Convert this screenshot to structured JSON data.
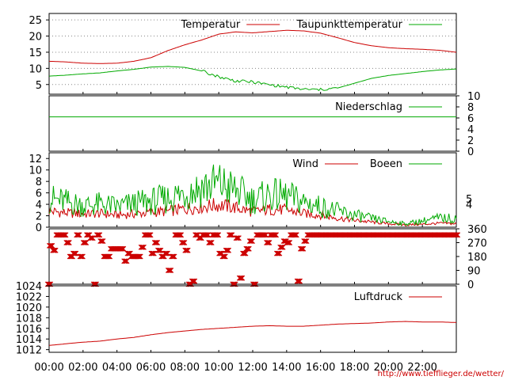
{
  "chart_data": [
    {
      "type": "line",
      "panel": "temperature",
      "ylim": [
        2,
        27
      ],
      "yticks": [
        5,
        10,
        15,
        20,
        25
      ],
      "grid": "horizontal-dotted",
      "legend_position": "top-right",
      "series": [
        {
          "name": "Temperatur",
          "color": "#cc0000",
          "x": [
            0,
            1,
            2,
            3,
            4,
            5,
            6,
            7,
            8,
            9,
            10,
            11,
            12,
            13,
            14,
            15,
            16,
            17,
            18,
            19,
            20,
            21,
            22,
            23,
            24
          ],
          "values": [
            12.2,
            12.0,
            11.6,
            11.5,
            11.6,
            12.2,
            13.3,
            15.5,
            17.3,
            18.8,
            20.6,
            21.3,
            21.0,
            21.4,
            21.8,
            21.6,
            20.9,
            19.5,
            18.0,
            17.0,
            16.4,
            16.1,
            15.9,
            15.6,
            15.0
          ]
        },
        {
          "name": "Taupunkttemperatur",
          "color": "#00aa00",
          "x": [
            0,
            1,
            2,
            3,
            4,
            5,
            6,
            7,
            8,
            9,
            10,
            11,
            12,
            13,
            14,
            15,
            16,
            17,
            18,
            19,
            20,
            21,
            22,
            23,
            24
          ],
          "values": [
            7.6,
            7.9,
            8.3,
            8.6,
            9.2,
            9.7,
            10.4,
            10.6,
            10.3,
            9.2,
            7.4,
            6.1,
            5.8,
            4.9,
            4.2,
            3.5,
            3.4,
            3.9,
            5.4,
            6.9,
            7.8,
            8.4,
            9.0,
            9.5,
            9.8
          ]
        }
      ]
    },
    {
      "type": "line",
      "panel": "precipitation",
      "ylim": [
        0,
        10
      ],
      "yticks": [
        0,
        2,
        4,
        6,
        8,
        10
      ],
      "legend_position": "top-right",
      "series": [
        {
          "name": "Niederschlag",
          "color": "#00aa00",
          "x": [
            0,
            24
          ],
          "values": [
            6.2,
            6.2
          ]
        }
      ]
    },
    {
      "type": "line",
      "panel": "wind",
      "ylim": [
        0,
        13
      ],
      "yticks": [
        0,
        2,
        4,
        6,
        8,
        10,
        12
      ],
      "yticks_right": [
        4,
        5
      ],
      "legend_position": "top-right",
      "series": [
        {
          "name": "Wind",
          "color": "#cc0000",
          "x": [
            0,
            1,
            2,
            3,
            4,
            5,
            6,
            7,
            8,
            9,
            10,
            11,
            12,
            13,
            14,
            15,
            16,
            17,
            18,
            19,
            20,
            21,
            22,
            23,
            24
          ],
          "values": [
            2.8,
            2.5,
            2.3,
            2.4,
            2.1,
            2.3,
            2.6,
            2.8,
            3.2,
            3.6,
            3.9,
            3.4,
            2.7,
            3.1,
            3.0,
            2.4,
            2.1,
            1.6,
            1.2,
            0.9,
            0.6,
            0.4,
            0.5,
            0.7,
            0.6
          ]
        },
        {
          "name": "Boeen",
          "color": "#00aa00",
          "x": [
            0,
            1,
            2,
            3,
            4,
            5,
            6,
            7,
            8,
            9,
            10,
            11,
            12,
            13,
            14,
            15,
            16,
            17,
            18,
            19,
            20,
            21,
            22,
            23,
            24
          ],
          "values": [
            5.0,
            4.4,
            3.8,
            4.0,
            3.6,
            4.1,
            4.5,
            5.0,
            6.0,
            7.0,
            7.6,
            6.4,
            4.8,
            5.6,
            5.4,
            4.4,
            3.6,
            2.8,
            2.1,
            1.5,
            1.0,
            0.6,
            1.1,
            1.6,
            1.5
          ]
        }
      ]
    },
    {
      "type": "scatter",
      "panel": "wind-direction",
      "ylim": [
        0,
        360
      ],
      "yticks": [
        0,
        90,
        180,
        270,
        360
      ],
      "marker": "x",
      "series": [
        {
          "color": "#cc0000",
          "x": [
            0.0,
            0.1,
            0.3,
            0.5,
            0.7,
            0.9,
            1.1,
            1.3,
            1.5,
            1.7,
            1.9,
            2.1,
            2.3,
            2.5,
            2.7,
            2.9,
            3.1,
            3.3,
            3.5,
            3.7,
            3.9,
            4.1,
            4.3,
            4.5,
            4.7,
            4.9,
            5.1,
            5.3,
            5.5,
            5.7,
            5.9,
            6.1,
            6.3,
            6.5,
            6.7,
            6.9,
            7.1,
            7.3,
            7.5,
            7.7,
            7.9,
            8.1,
            8.3,
            8.5,
            8.7,
            8.9,
            9.1,
            9.3,
            9.5,
            9.7,
            9.9,
            10.1,
            10.3,
            10.5,
            10.7,
            10.9,
            11.1,
            11.3,
            11.5,
            11.7,
            11.9,
            12.1,
            12.3,
            12.5,
            12.7,
            12.9,
            13.1,
            13.3,
            13.5,
            13.7,
            13.9,
            14.1,
            14.3,
            14.5,
            14.7,
            14.9,
            15.1,
            15.3,
            15.5,
            15.7
          ],
          "values": [
            0,
            250,
            220,
            320,
            320,
            320,
            270,
            180,
            200,
            320,
            180,
            270,
            320,
            300,
            0,
            320,
            280,
            180,
            180,
            230,
            230,
            230,
            230,
            150,
            200,
            180,
            180,
            180,
            240,
            320,
            320,
            200,
            270,
            220,
            180,
            200,
            90,
            180,
            320,
            320,
            270,
            220,
            0,
            20,
            320,
            300,
            320,
            320,
            270,
            320,
            320,
            200,
            180,
            220,
            320,
            0,
            300,
            40,
            200,
            230,
            280,
            0,
            320,
            320,
            320,
            270,
            320,
            320,
            200,
            240,
            280,
            270,
            320,
            320,
            20,
            230,
            280,
            320,
            320,
            320
          ]
        },
        {
          "color": "#cc0000",
          "x": [
            15.8,
            16.0,
            16.2,
            16.4,
            16.6,
            16.8,
            17.0,
            17.2,
            17.4,
            17.6,
            17.8,
            18.0,
            18.2,
            18.4,
            18.6,
            18.8,
            19.0,
            19.2,
            19.4,
            19.6,
            19.8,
            20.0,
            20.2,
            20.4,
            20.6,
            20.8,
            21.0,
            21.2,
            21.4,
            21.6,
            21.8,
            22.0,
            22.2,
            22.4,
            22.6,
            22.8,
            23.0,
            23.2,
            23.4,
            23.6,
            23.8,
            24.0
          ],
          "values": [
            320,
            320,
            320,
            320,
            320,
            320,
            320,
            320,
            320,
            320,
            320,
            320,
            320,
            320,
            320,
            320,
            320,
            320,
            320,
            320,
            320,
            320,
            320,
            320,
            320,
            320,
            320,
            320,
            320,
            320,
            320,
            320,
            320,
            320,
            320,
            320,
            320,
            320,
            320,
            320,
            320,
            320
          ]
        }
      ]
    },
    {
      "type": "line",
      "panel": "pressure",
      "ylim": [
        1011.5,
        1024
      ],
      "yticks": [
        1012,
        1014,
        1016,
        1018,
        1020,
        1022,
        1024
      ],
      "legend_position": "top-right",
      "series": [
        {
          "name": "Luftdruck",
          "color": "#cc0000",
          "x": [
            0,
            1,
            2,
            3,
            4,
            5,
            6,
            7,
            8,
            9,
            10,
            11,
            12,
            13,
            14,
            15,
            16,
            17,
            18,
            19,
            20,
            21,
            22,
            23,
            24
          ],
          "values": [
            1012.8,
            1013.1,
            1013.4,
            1013.6,
            1014.0,
            1014.3,
            1014.8,
            1015.2,
            1015.5,
            1015.8,
            1016.0,
            1016.2,
            1016.4,
            1016.5,
            1016.4,
            1016.4,
            1016.6,
            1016.8,
            1016.9,
            1017.0,
            1017.2,
            1017.3,
            1017.2,
            1017.2,
            1017.1
          ]
        }
      ]
    }
  ],
  "x_axis": {
    "range": [
      0,
      24
    ],
    "tick_labels": [
      "00:00",
      "02:00",
      "04:00",
      "06:00",
      "08:00",
      "10:00",
      "12:00",
      "14:00",
      "16:00",
      "18:00",
      "20:00",
      "22:00"
    ]
  },
  "credit": "http://www.tiefflieger.de/wetter/"
}
